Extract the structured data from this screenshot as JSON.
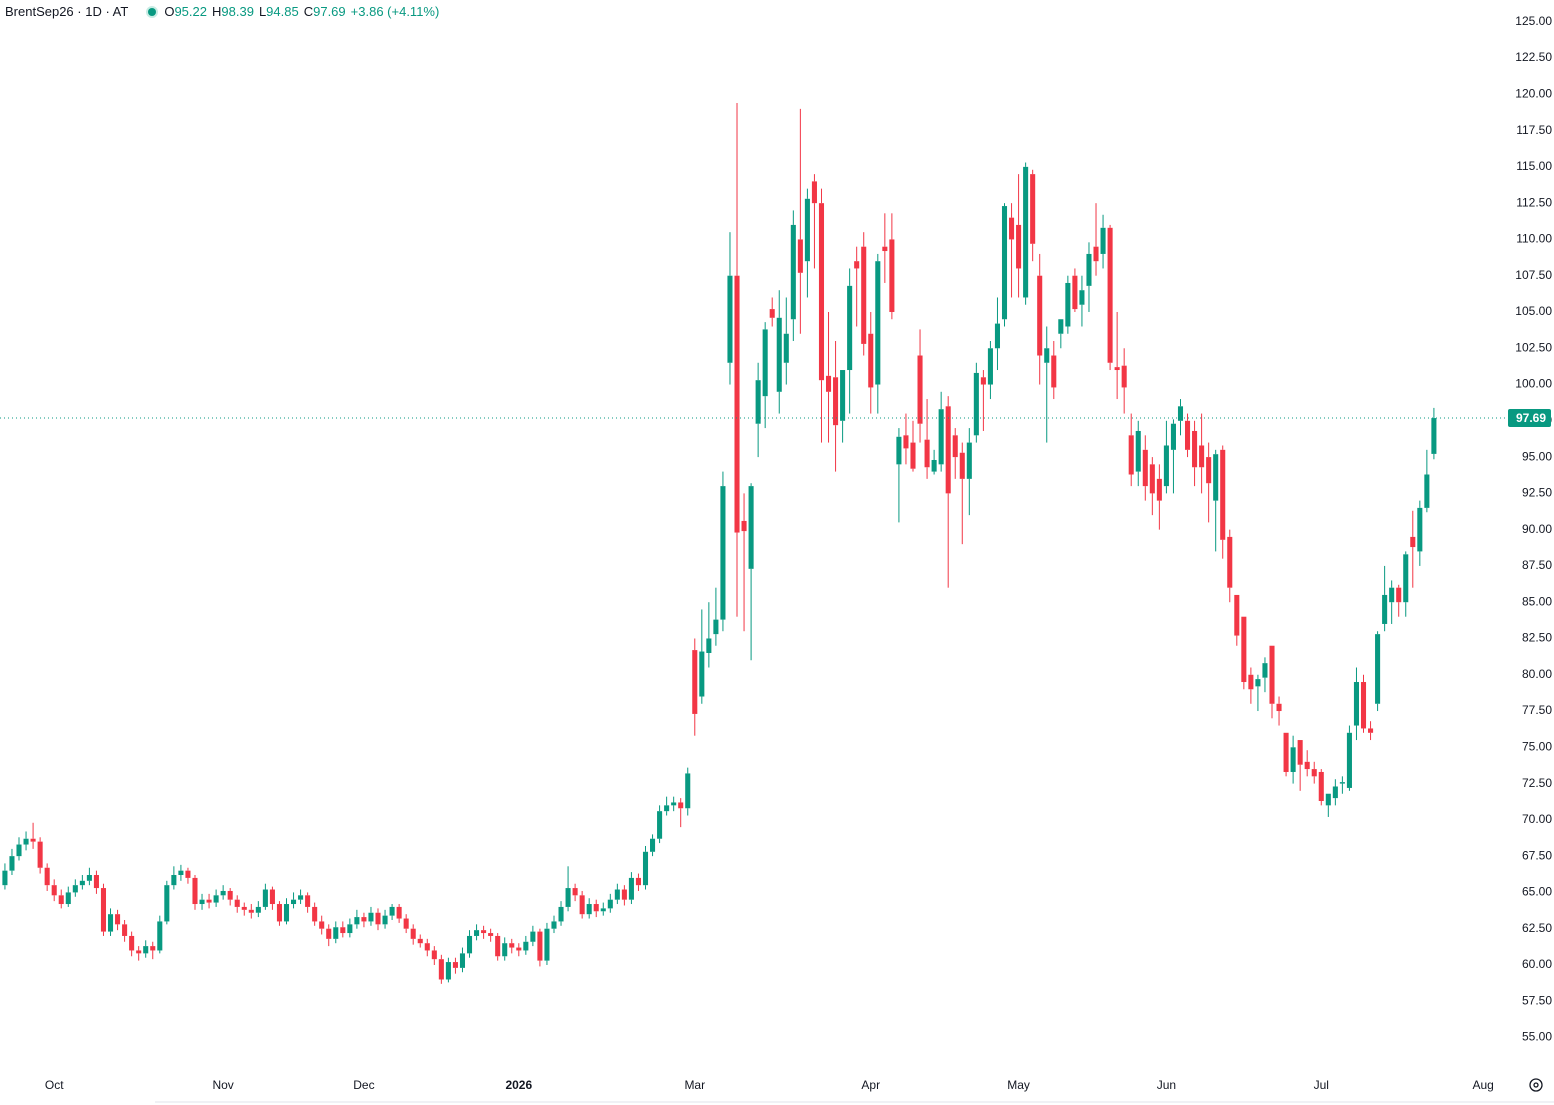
{
  "header": {
    "symbol": "BrentSep26 · 1D · AT",
    "o_label": "O",
    "open": 95.22,
    "h_label": "H",
    "high": 98.39,
    "l_label": "L",
    "low": 94.85,
    "c_label": "C",
    "close": 97.69,
    "change": "+3.86 (+4.11%)"
  },
  "chart_data": {
    "type": "candlestick",
    "up_color": "#089981",
    "down_color": "#f23645",
    "ylim": [
      52.9,
      126.5
    ],
    "xlim": [
      -0.7,
      213.1
    ],
    "yticks": [
      {
        "value": 55,
        "label": "55.00"
      },
      {
        "value": 57.5,
        "label": "57.50"
      },
      {
        "value": 60,
        "label": "60.00"
      },
      {
        "value": 62.5,
        "label": "62.50"
      },
      {
        "value": 65,
        "label": "65.00"
      },
      {
        "value": 67.5,
        "label": "67.50"
      },
      {
        "value": 70,
        "label": "70.00"
      },
      {
        "value": 72.5,
        "label": "72.50"
      },
      {
        "value": 75,
        "label": "75.00"
      },
      {
        "value": 77.5,
        "label": "77.50"
      },
      {
        "value": 80,
        "label": "80.00"
      },
      {
        "value": 82.5,
        "label": "82.50"
      },
      {
        "value": 85,
        "label": "85.00"
      },
      {
        "value": 87.5,
        "label": "87.50"
      },
      {
        "value": 90,
        "label": "90.00"
      },
      {
        "value": 92.5,
        "label": "92.50"
      },
      {
        "value": 95,
        "label": "95.00"
      },
      {
        "value": 97.5,
        "label": "97.50"
      },
      {
        "value": 100,
        "label": "100.00"
      },
      {
        "value": 102.5,
        "label": "102.50"
      },
      {
        "value": 105,
        "label": "105.00"
      },
      {
        "value": 107.5,
        "label": "107.50"
      },
      {
        "value": 110,
        "label": "110.00"
      },
      {
        "value": 112.5,
        "label": "112.50"
      },
      {
        "value": 115,
        "label": "115.00"
      },
      {
        "value": 117.5,
        "label": "117.50"
      },
      {
        "value": 120,
        "label": "120.00"
      },
      {
        "value": 122.5,
        "label": "122.50"
      },
      {
        "value": 125,
        "label": "125.00"
      }
    ],
    "xticks": [
      {
        "value": 7,
        "label": "Oct"
      },
      {
        "value": 31,
        "label": "Nov"
      },
      {
        "value": 51,
        "label": "Dec"
      },
      {
        "value": 73,
        "label": "2026"
      },
      {
        "value": 98,
        "label": "Mar"
      },
      {
        "value": 123,
        "label": "Apr"
      },
      {
        "value": 144,
        "label": "May"
      },
      {
        "value": 165,
        "label": "Jun"
      },
      {
        "value": 187,
        "label": "Jul"
      },
      {
        "value": 210,
        "label": "Aug"
      }
    ],
    "bold_xtick": "2026",
    "last_price": 97.69,
    "ohlc": [
      [
        65.5,
        67.0,
        65.2,
        66.5
      ],
      [
        66.5,
        68.0,
        66.2,
        67.5
      ],
      [
        67.5,
        68.8,
        67.2,
        68.3
      ],
      [
        68.3,
        69.2,
        67.9,
        68.7
      ],
      [
        68.7,
        69.8,
        68.0,
        68.5
      ],
      [
        68.5,
        68.8,
        66.3,
        66.7
      ],
      [
        66.7,
        67.0,
        65.1,
        65.5
      ],
      [
        65.5,
        65.9,
        64.4,
        64.8
      ],
      [
        64.8,
        65.2,
        63.9,
        64.2
      ],
      [
        64.2,
        65.4,
        64.0,
        65.0
      ],
      [
        65.0,
        65.9,
        64.7,
        65.5
      ],
      [
        65.5,
        66.2,
        65.2,
        65.8
      ],
      [
        65.8,
        66.7,
        65.5,
        66.2
      ],
      [
        66.2,
        66.5,
        64.9,
        65.3
      ],
      [
        65.3,
        65.6,
        62.0,
        62.3
      ],
      [
        62.3,
        63.9,
        62.0,
        63.5
      ],
      [
        63.5,
        63.8,
        62.4,
        62.8
      ],
      [
        62.8,
        63.1,
        61.6,
        62.0
      ],
      [
        62.0,
        62.3,
        60.6,
        61.0
      ],
      [
        61.0,
        61.3,
        60.3,
        60.8
      ],
      [
        60.8,
        61.7,
        60.5,
        61.3
      ],
      [
        61.3,
        61.6,
        60.4,
        61.0
      ],
      [
        61.0,
        63.4,
        60.8,
        63.0
      ],
      [
        63.0,
        65.8,
        62.8,
        65.5
      ],
      [
        65.5,
        66.8,
        65.2,
        66.2
      ],
      [
        66.2,
        66.9,
        65.8,
        66.5
      ],
      [
        66.5,
        66.7,
        65.6,
        66.0
      ],
      [
        66.0,
        66.2,
        63.8,
        64.2
      ],
      [
        64.2,
        64.9,
        63.8,
        64.5
      ],
      [
        64.5,
        64.9,
        63.9,
        64.3
      ],
      [
        64.3,
        65.2,
        64.0,
        64.8
      ],
      [
        64.8,
        65.5,
        64.5,
        65.1
      ],
      [
        65.1,
        65.3,
        64.1,
        64.5
      ],
      [
        64.5,
        64.8,
        63.6,
        64.0
      ],
      [
        64.0,
        64.3,
        63.4,
        63.8
      ],
      [
        63.8,
        64.2,
        63.2,
        63.6
      ],
      [
        63.6,
        64.4,
        63.3,
        64.0
      ],
      [
        64.0,
        65.6,
        63.8,
        65.2
      ],
      [
        65.2,
        65.4,
        63.8,
        64.2
      ],
      [
        64.2,
        64.4,
        62.7,
        63.0
      ],
      [
        63.0,
        64.6,
        62.8,
        64.2
      ],
      [
        64.2,
        65.0,
        63.9,
        64.5
      ],
      [
        64.5,
        65.2,
        64.2,
        64.8
      ],
      [
        64.8,
        65.0,
        63.6,
        64.0
      ],
      [
        64.0,
        64.3,
        62.7,
        63.0
      ],
      [
        63.0,
        63.4,
        62.1,
        62.5
      ],
      [
        62.5,
        62.8,
        61.3,
        61.8
      ],
      [
        61.8,
        63.0,
        61.5,
        62.6
      ],
      [
        62.6,
        63.0,
        61.9,
        62.2
      ],
      [
        62.2,
        63.2,
        61.9,
        62.8
      ],
      [
        62.8,
        63.8,
        62.5,
        63.3
      ],
      [
        63.3,
        63.6,
        62.6,
        63.0
      ],
      [
        63.0,
        64.0,
        62.7,
        63.6
      ],
      [
        63.6,
        63.9,
        62.4,
        62.8
      ],
      [
        62.8,
        63.8,
        62.5,
        63.4
      ],
      [
        63.4,
        64.2,
        63.1,
        64.0
      ],
      [
        64.0,
        64.2,
        62.9,
        63.2
      ],
      [
        63.2,
        63.5,
        62.2,
        62.5
      ],
      [
        62.5,
        62.8,
        61.4,
        61.8
      ],
      [
        61.8,
        62.1,
        61.2,
        61.5
      ],
      [
        61.5,
        61.8,
        60.6,
        61.0
      ],
      [
        61.0,
        61.3,
        60.0,
        60.4
      ],
      [
        60.4,
        60.7,
        58.7,
        59.0
      ],
      [
        59.0,
        60.5,
        58.8,
        60.2
      ],
      [
        60.2,
        60.5,
        59.4,
        59.8
      ],
      [
        59.8,
        61.2,
        59.5,
        60.8
      ],
      [
        60.8,
        62.4,
        60.5,
        62.0
      ],
      [
        62.0,
        62.8,
        61.7,
        62.4
      ],
      [
        62.4,
        62.7,
        61.8,
        62.2
      ],
      [
        62.2,
        62.5,
        61.6,
        62.0
      ],
      [
        62.0,
        62.2,
        60.3,
        60.6
      ],
      [
        60.6,
        61.9,
        60.3,
        61.5
      ],
      [
        61.5,
        61.8,
        60.8,
        61.2
      ],
      [
        61.2,
        61.5,
        60.6,
        61.0
      ],
      [
        61.0,
        62.0,
        60.7,
        61.6
      ],
      [
        61.6,
        62.7,
        61.3,
        62.3
      ],
      [
        62.3,
        62.5,
        59.9,
        60.3
      ],
      [
        60.3,
        62.9,
        60.0,
        62.5
      ],
      [
        62.5,
        63.4,
        62.2,
        63.0
      ],
      [
        63.0,
        64.4,
        62.7,
        64.0
      ],
      [
        64.0,
        66.8,
        63.7,
        65.3
      ],
      [
        65.3,
        65.6,
        64.4,
        64.8
      ],
      [
        64.8,
        65.1,
        63.2,
        63.5
      ],
      [
        63.5,
        64.6,
        63.2,
        64.2
      ],
      [
        64.2,
        64.5,
        63.3,
        63.7
      ],
      [
        63.7,
        64.3,
        63.4,
        63.9
      ],
      [
        63.9,
        64.9,
        63.6,
        64.5
      ],
      [
        64.5,
        65.6,
        64.2,
        65.2
      ],
      [
        65.2,
        65.5,
        64.1,
        64.5
      ],
      [
        64.5,
        66.4,
        64.2,
        66.0
      ],
      [
        66.0,
        66.3,
        65.1,
        65.5
      ],
      [
        65.5,
        68.2,
        65.2,
        67.8
      ],
      [
        67.8,
        69.0,
        67.5,
        68.7
      ],
      [
        68.7,
        71.0,
        68.4,
        70.6
      ],
      [
        70.6,
        71.6,
        70.3,
        71.0
      ],
      [
        71.0,
        71.6,
        70.6,
        71.2
      ],
      [
        71.2,
        71.5,
        69.5,
        70.8
      ],
      [
        70.8,
        73.6,
        70.3,
        73.2
      ],
      [
        81.7,
        82.5,
        75.8,
        77.3
      ],
      [
        78.5,
        84.5,
        78.0,
        81.6
      ],
      [
        81.5,
        85.0,
        80.5,
        82.5
      ],
      [
        82.8,
        86.0,
        82.0,
        83.8
      ],
      [
        83.8,
        94.0,
        83.0,
        93.0
      ],
      [
        101.5,
        110.5,
        100.0,
        107.5
      ],
      [
        107.5,
        119.4,
        84.0,
        89.8
      ],
      [
        90.6,
        92.5,
        83.0,
        89.9
      ],
      [
        87.3,
        93.2,
        81.0,
        93.0
      ],
      [
        97.3,
        101.5,
        95.0,
        100.3
      ],
      [
        99.2,
        104.3,
        97.0,
        103.8
      ],
      [
        105.2,
        106.0,
        104.0,
        104.6
      ],
      [
        99.5,
        106.5,
        98.0,
        104.6
      ],
      [
        101.5,
        106.0,
        100.0,
        103.5
      ],
      [
        104.5,
        112.0,
        103.0,
        111.0
      ],
      [
        110.0,
        119.0,
        103.5,
        107.7
      ],
      [
        108.5,
        113.5,
        106.0,
        112.8
      ],
      [
        114.0,
        114.5,
        108.0,
        112.5
      ],
      [
        112.5,
        113.5,
        96.0,
        100.3
      ],
      [
        100.6,
        105.0,
        96.0,
        99.5
      ],
      [
        100.5,
        103.0,
        94.0,
        97.2
      ],
      [
        97.5,
        101.0,
        96.0,
        101.0
      ],
      [
        101.0,
        108.0,
        98.0,
        106.8
      ],
      [
        108.5,
        109.5,
        104.0,
        108.0
      ],
      [
        109.5,
        110.5,
        102.0,
        102.8
      ],
      [
        103.5,
        105.0,
        98.0,
        99.8
      ],
      [
        100.0,
        109.0,
        98.0,
        108.5
      ],
      [
        109.5,
        111.8,
        107.0,
        109.2
      ],
      [
        110.0,
        111.8,
        104.5,
        105.0
      ],
      [
        94.5,
        97.0,
        90.5,
        96.4
      ],
      [
        96.5,
        98.0,
        94.5,
        95.6
      ],
      [
        96.0,
        97.5,
        94.0,
        94.2
      ],
      [
        102.0,
        103.8,
        96.0,
        97.3
      ],
      [
        96.2,
        99.0,
        93.5,
        94.3
      ],
      [
        94.0,
        95.5,
        93.8,
        94.8
      ],
      [
        94.5,
        99.5,
        94.0,
        98.3
      ],
      [
        98.5,
        99.2,
        86.0,
        92.5
      ],
      [
        96.5,
        97.0,
        93.5,
        95.0
      ],
      [
        95.3,
        96.0,
        89.0,
        93.5
      ],
      [
        93.5,
        97.0,
        91.0,
        96.0
      ],
      [
        96.5,
        101.5,
        96.0,
        100.8
      ],
      [
        100.5,
        101.0,
        96.8,
        100.0
      ],
      [
        100.0,
        103.0,
        99.0,
        102.5
      ],
      [
        102.5,
        106.0,
        101.0,
        104.2
      ],
      [
        104.5,
        112.5,
        104.0,
        112.3
      ],
      [
        111.5,
        112.5,
        106.0,
        110.0
      ],
      [
        111.0,
        114.5,
        106.0,
        108.0
      ],
      [
        106.0,
        115.3,
        105.5,
        115.0
      ],
      [
        114.5,
        114.8,
        108.5,
        109.7
      ],
      [
        107.5,
        109.0,
        100.0,
        102.0
      ],
      [
        101.5,
        104.0,
        96.0,
        102.5
      ],
      [
        102.0,
        103.0,
        99.0,
        99.8
      ],
      [
        103.5,
        104.5,
        102.5,
        104.5
      ],
      [
        104.0,
        107.5,
        103.5,
        107.0
      ],
      [
        107.5,
        108.0,
        105.0,
        105.2
      ],
      [
        105.5,
        107.5,
        104.0,
        106.5
      ],
      [
        106.8,
        109.8,
        105.0,
        109.0
      ],
      [
        109.5,
        112.5,
        107.5,
        108.5
      ],
      [
        109.0,
        111.7,
        108.0,
        110.8
      ],
      [
        110.8,
        111.0,
        101.0,
        101.5
      ],
      [
        101.2,
        105.0,
        99.0,
        101.0
      ],
      [
        101.3,
        102.5,
        98.0,
        99.8
      ],
      [
        96.5,
        98.0,
        93.0,
        93.8
      ],
      [
        94.0,
        97.5,
        93.0,
        96.8
      ],
      [
        95.5,
        96.5,
        92.0,
        93.0
      ],
      [
        94.5,
        95.0,
        91.0,
        92.5
      ],
      [
        93.5,
        94.5,
        90.0,
        92.0
      ],
      [
        93.0,
        97.5,
        92.5,
        95.8
      ],
      [
        95.5,
        97.6,
        92.5,
        97.3
      ],
      [
        97.5,
        99.0,
        96.5,
        98.5
      ],
      [
        97.5,
        98.0,
        95.0,
        95.5
      ],
      [
        96.8,
        97.5,
        93.0,
        94.3
      ],
      [
        95.8,
        98.0,
        92.5,
        94.3
      ],
      [
        95.0,
        96.0,
        90.5,
        93.2
      ],
      [
        92.0,
        95.5,
        88.5,
        95.2
      ],
      [
        95.5,
        95.8,
        88.0,
        89.3
      ],
      [
        89.5,
        90.0,
        85.0,
        86.0
      ],
      [
        85.5,
        85.5,
        82.0,
        82.7
      ],
      [
        84.0,
        84.0,
        79.0,
        79.5
      ],
      [
        80.0,
        80.5,
        78.0,
        79.0
      ],
      [
        79.2,
        80.0,
        77.5,
        79.7
      ],
      [
        79.8,
        81.2,
        78.8,
        80.8
      ],
      [
        82.0,
        82.0,
        77.0,
        78.0
      ],
      [
        78.0,
        78.5,
        76.5,
        77.5
      ],
      [
        76.0,
        76.0,
        73.0,
        73.3
      ],
      [
        73.3,
        75.8,
        72.5,
        75.0
      ],
      [
        75.5,
        75.5,
        72.0,
        73.8
      ],
      [
        74.0,
        74.8,
        73.0,
        73.5
      ],
      [
        73.5,
        74.0,
        72.5,
        73.0
      ],
      [
        73.3,
        73.5,
        71.0,
        71.3
      ],
      [
        71.0,
        71.8,
        70.2,
        71.8
      ],
      [
        71.5,
        72.8,
        71.0,
        72.3
      ],
      [
        72.5,
        73.0,
        71.8,
        72.6
      ],
      [
        72.2,
        76.5,
        72.0,
        76.0
      ],
      [
        76.5,
        80.5,
        75.5,
        79.5
      ],
      [
        79.5,
        80.0,
        76.0,
        76.3
      ],
      [
        76.3,
        76.8,
        75.5,
        76.0
      ],
      [
        78.0,
        83.0,
        77.5,
        82.8
      ],
      [
        83.5,
        87.5,
        83.0,
        85.5
      ],
      [
        85.0,
        86.5,
        83.5,
        86.0
      ],
      [
        86.0,
        86.2,
        84.0,
        85.0
      ],
      [
        85.0,
        88.5,
        84.0,
        88.3
      ],
      [
        89.5,
        91.3,
        86.0,
        88.8
      ],
      [
        88.5,
        92.0,
        87.5,
        91.5
      ],
      [
        91.5,
        95.5,
        91.2,
        93.8
      ],
      [
        95.22,
        98.39,
        94.85,
        97.69
      ]
    ]
  }
}
